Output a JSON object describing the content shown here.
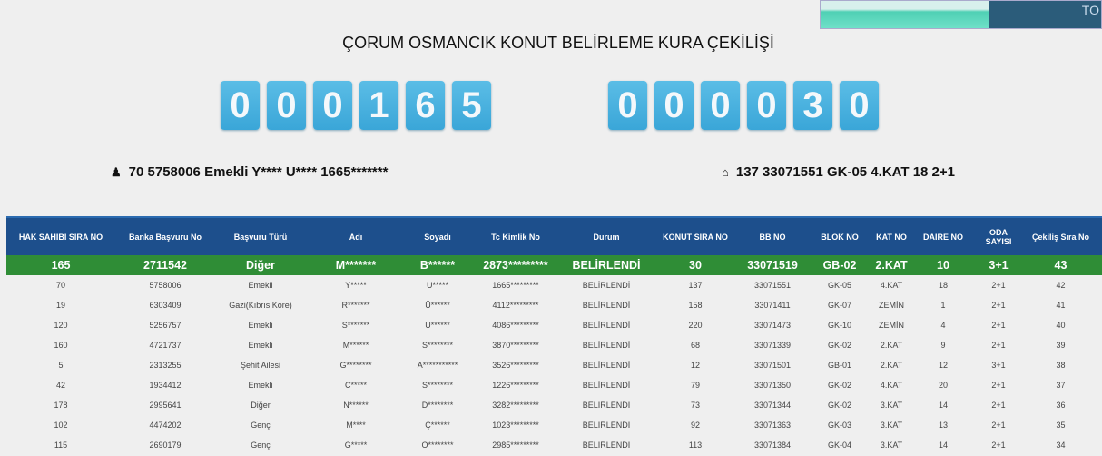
{
  "title": "ÇORUM OSMANCIK KONUT BELİRLEME KURA ÇEKİLİŞİ",
  "thumbnail_text": "TO",
  "counter_left": [
    "0",
    "0",
    "0",
    "1",
    "6",
    "5"
  ],
  "counter_right": [
    "0",
    "0",
    "0",
    "0",
    "3",
    "0"
  ],
  "applicant_info": {
    "icon": "user-icon",
    "text": "70 5758006 Emekli Y**** U**** 1665*******"
  },
  "house_info": {
    "icon": "home-icon",
    "text": "137 33071551 GK-05 4.KAT 18 2+1"
  },
  "colors": {
    "header": "#1d4f8c",
    "highlight": "#2f8d36",
    "digit": "#45afdd"
  },
  "table": {
    "headers": [
      "HAK SAHİBİ SIRA NO",
      "Banka Başvuru No",
      "Başvuru Türü",
      "Adı",
      "Soyadı",
      "Tc Kimlik No",
      "Durum",
      "KONUT SIRA NO",
      "BB NO",
      "BLOK NO",
      "KAT NO",
      "DAİRE NO",
      "ODA SAYISI",
      "Çekiliş Sıra No"
    ],
    "highlight": [
      "165",
      "2711542",
      "Diğer",
      "M*******",
      "B******",
      "2873*********",
      "BELİRLENDİ",
      "30",
      "33071519",
      "GB-02",
      "2.KAT",
      "10",
      "3+1",
      "43"
    ],
    "rows": [
      [
        "70",
        "5758006",
        "Emekli",
        "Y*****",
        "U*****",
        "1665*********",
        "BELİRLENDİ",
        "137",
        "33071551",
        "GK-05",
        "4.KAT",
        "18",
        "2+1",
        "42"
      ],
      [
        "19",
        "6303409",
        "Gazi(Kıbrıs,Kore)",
        "R*******",
        "Ü******",
        "4112*********",
        "BELİRLENDİ",
        "158",
        "33071411",
        "GK-07",
        "ZEMİN",
        "1",
        "2+1",
        "41"
      ],
      [
        "120",
        "5256757",
        "Emekli",
        "S*******",
        "U******",
        "4086*********",
        "BELİRLENDİ",
        "220",
        "33071473",
        "GK-10",
        "ZEMİN",
        "4",
        "2+1",
        "40"
      ],
      [
        "160",
        "4721737",
        "Emekli",
        "M******",
        "S********",
        "3870*********",
        "BELİRLENDİ",
        "68",
        "33071339",
        "GK-02",
        "2.KAT",
        "9",
        "2+1",
        "39"
      ],
      [
        "5",
        "2313255",
        "Şehit Ailesi",
        "G********",
        "A***********",
        "3526*********",
        "BELİRLENDİ",
        "12",
        "33071501",
        "GB-01",
        "2.KAT",
        "12",
        "3+1",
        "38"
      ],
      [
        "42",
        "1934412",
        "Emekli",
        "C*****",
        "S********",
        "1226*********",
        "BELİRLENDİ",
        "79",
        "33071350",
        "GK-02",
        "4.KAT",
        "20",
        "2+1",
        "37"
      ],
      [
        "178",
        "2995641",
        "Diğer",
        "N******",
        "D********",
        "3282*********",
        "BELİRLENDİ",
        "73",
        "33071344",
        "GK-02",
        "3.KAT",
        "14",
        "2+1",
        "36"
      ],
      [
        "102",
        "4474202",
        "Genç",
        "M****",
        "Ç******",
        "1023*********",
        "BELİRLENDİ",
        "92",
        "33071363",
        "GK-03",
        "3.KAT",
        "13",
        "2+1",
        "35"
      ],
      [
        "115",
        "2690179",
        "Genç",
        "G*****",
        "O********",
        "2985*********",
        "BELİRLENDİ",
        "113",
        "33071384",
        "GK-04",
        "3.KAT",
        "14",
        "2+1",
        "34"
      ]
    ]
  }
}
